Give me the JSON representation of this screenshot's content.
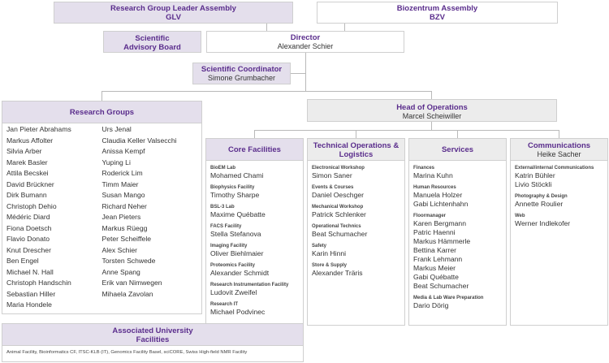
{
  "glv": {
    "title": "Research Group Leader Assembly",
    "sub": "GLV"
  },
  "bzv": {
    "title": "Biozentrum Assembly",
    "sub": "BZV"
  },
  "sab": {
    "title": "Scientific Advisory Board"
  },
  "director": {
    "title": "Director",
    "name": "Alexander Schier"
  },
  "coordinator": {
    "title": "Scientific Coordinator",
    "name": "Simone Grumbacher"
  },
  "research_groups": {
    "title": "Research Groups",
    "col1": [
      "Jan Pieter Abrahams",
      "Markus Affolter",
      "Silvia Arber",
      "Marek Basler",
      "Attila Becskei",
      "David Brückner",
      "Dirk Bumann",
      "Christoph Dehio",
      "Médéric Diard",
      "Fiona Doetsch",
      "Flavio Donato",
      "Knut Drescher",
      "Ben Engel",
      "Michael N. Hall",
      "Christoph Handschin",
      "Sebastian Hiller",
      "Maria Hondele"
    ],
    "col2": [
      "Urs Jenal",
      "Claudia Keller Valsecchi",
      "Anissa Kempf",
      "Yuping Li",
      "Roderick Lim",
      "Timm Maier",
      "Susan Mango",
      "Richard Neher",
      "Jean Pieters",
      "Markus Rüegg",
      "Peter Scheiffele",
      "Alex Schier",
      "Torsten Schwede",
      "Anne Spang",
      "Erik van Nimwegen",
      "Mihaela Zavolan"
    ]
  },
  "head_ops": {
    "title": "Head of Operations",
    "name": "Marcel Scheiwiller"
  },
  "core": {
    "title": "Core Facilities",
    "sections": [
      {
        "label": "BioEM Lab",
        "names": [
          "Mohamed Chami"
        ]
      },
      {
        "label": "Biophysics Facility",
        "names": [
          "Timothy Sharpe"
        ]
      },
      {
        "label": "BSL-3 Lab",
        "names": [
          "Maxime Québatte"
        ]
      },
      {
        "label": "FACS Facility",
        "names": [
          "Stella Stefanova"
        ]
      },
      {
        "label": "Imaging Facility",
        "names": [
          "Oliver Biehlmaier"
        ]
      },
      {
        "label": "Proteomics Facility",
        "names": [
          "Alexander Schmidt"
        ]
      },
      {
        "label": "Research Instrumentation Facility",
        "names": [
          "Ludovit Zweifel"
        ]
      },
      {
        "label": "Research IT",
        "names": [
          "Michael Podvinec"
        ]
      }
    ]
  },
  "tech": {
    "title": "Technical Operations & Logistics",
    "sections": [
      {
        "label": "Electronical Workshop",
        "names": [
          "Simon Saner"
        ]
      },
      {
        "label": "Events & Courses",
        "names": [
          "Daniel Oeschger"
        ]
      },
      {
        "label": "Mechanical Workshop",
        "names": [
          "Patrick Schlenker"
        ]
      },
      {
        "label": "Operational Technics",
        "names": [
          "Beat Schumacher"
        ]
      },
      {
        "label": "Safety",
        "names": [
          "Karin Hinni"
        ]
      },
      {
        "label": "Store & Supply",
        "names": [
          "Alexander Träris"
        ]
      }
    ]
  },
  "services": {
    "title": "Services",
    "sections": [
      {
        "label": "Finances",
        "names": [
          "Marina Kuhn"
        ]
      },
      {
        "label": "Human Resources",
        "names": [
          "Manuela Holzer",
          "Gabi Lichtenhahn"
        ]
      },
      {
        "label": "Floormanager",
        "names": [
          "Karen Bergmann",
          "Patric Haenni",
          "Markus Hämmerle",
          "Bettina Karrer",
          "Frank Lehmann",
          "Markus Meier",
          "Gabi Québatte",
          "Beat Schumacher"
        ]
      },
      {
        "label": "Media & Lab Ware Preparation",
        "names": [
          "Dario Dörig"
        ]
      }
    ]
  },
  "comm": {
    "title": "Communications",
    "name": "Heike Sacher",
    "sections": [
      {
        "label": "External/internal Communications",
        "names": [
          "Katrin Bühler",
          "Livio Stöckli"
        ]
      },
      {
        "label": "Photography & Design",
        "names": [
          "Annette Roulier"
        ]
      },
      {
        "label": "Web",
        "names": [
          "Werner Indlekofer"
        ]
      }
    ]
  },
  "associated": {
    "title": "Associated University Facilities",
    "text": "Animal Facility, Bioinformatics CF, ITSC-KLB (IT), Genomics Facility Basel, sciCORE, Swiss High-field NMR Facility"
  }
}
